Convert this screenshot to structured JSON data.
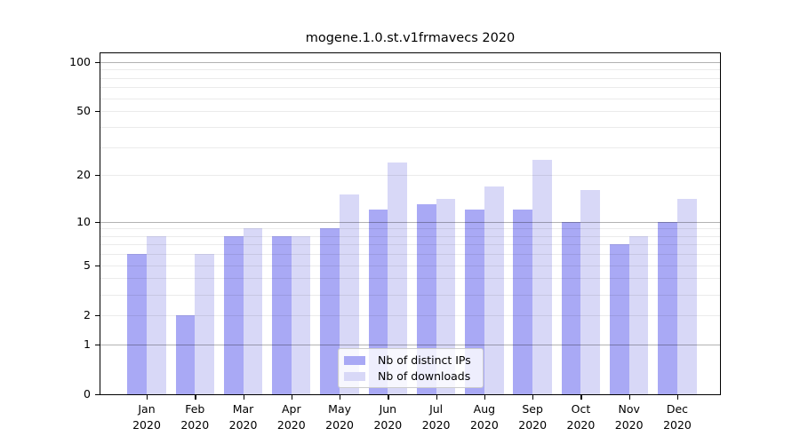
{
  "title": "mogene.1.0.st.v1frmavecs 2020",
  "chart_data": {
    "type": "bar",
    "title": "mogene.1.0.st.v1frmavecs 2020",
    "categories": [
      "Jan 2020",
      "Feb 2020",
      "Mar 2020",
      "Apr 2020",
      "May 2020",
      "Jun 2020",
      "Jul 2020",
      "Aug 2020",
      "Sep 2020",
      "Oct 2020",
      "Nov 2020",
      "Dec 2020"
    ],
    "x_tick_months": [
      "Jan",
      "Feb",
      "Mar",
      "Apr",
      "May",
      "Jun",
      "Jul",
      "Aug",
      "Sep",
      "Oct",
      "Nov",
      "Dec"
    ],
    "x_tick_year": "2020",
    "series": [
      {
        "name": "Nb of distinct IPs",
        "color": "#a9a9f5",
        "values": [
          6,
          2,
          8,
          8,
          9,
          12,
          13,
          12,
          12,
          10,
          7,
          10
        ]
      },
      {
        "name": "Nb of downloads",
        "color": "#d8d8f7",
        "values": [
          8,
          6,
          9,
          8,
          15,
          24,
          14,
          17,
          25,
          16,
          8,
          14
        ]
      }
    ],
    "xlabel": "",
    "ylabel": "",
    "y_axis": {
      "scale": "log1p",
      "tick_labels": [
        "0",
        "1",
        "2",
        "5",
        "10",
        "20",
        "50",
        "100"
      ],
      "tick_values": [
        0,
        1,
        2,
        5,
        10,
        20,
        50,
        100
      ],
      "minor_grid_values": [
        2,
        3,
        4,
        5,
        6,
        7,
        8,
        9,
        20,
        30,
        40,
        50,
        60,
        70,
        80,
        90
      ],
      "major_grid_values": [
        1,
        10,
        100
      ],
      "ylim": [
        0,
        114
      ]
    },
    "grid": true,
    "legend_position": "lower center"
  }
}
